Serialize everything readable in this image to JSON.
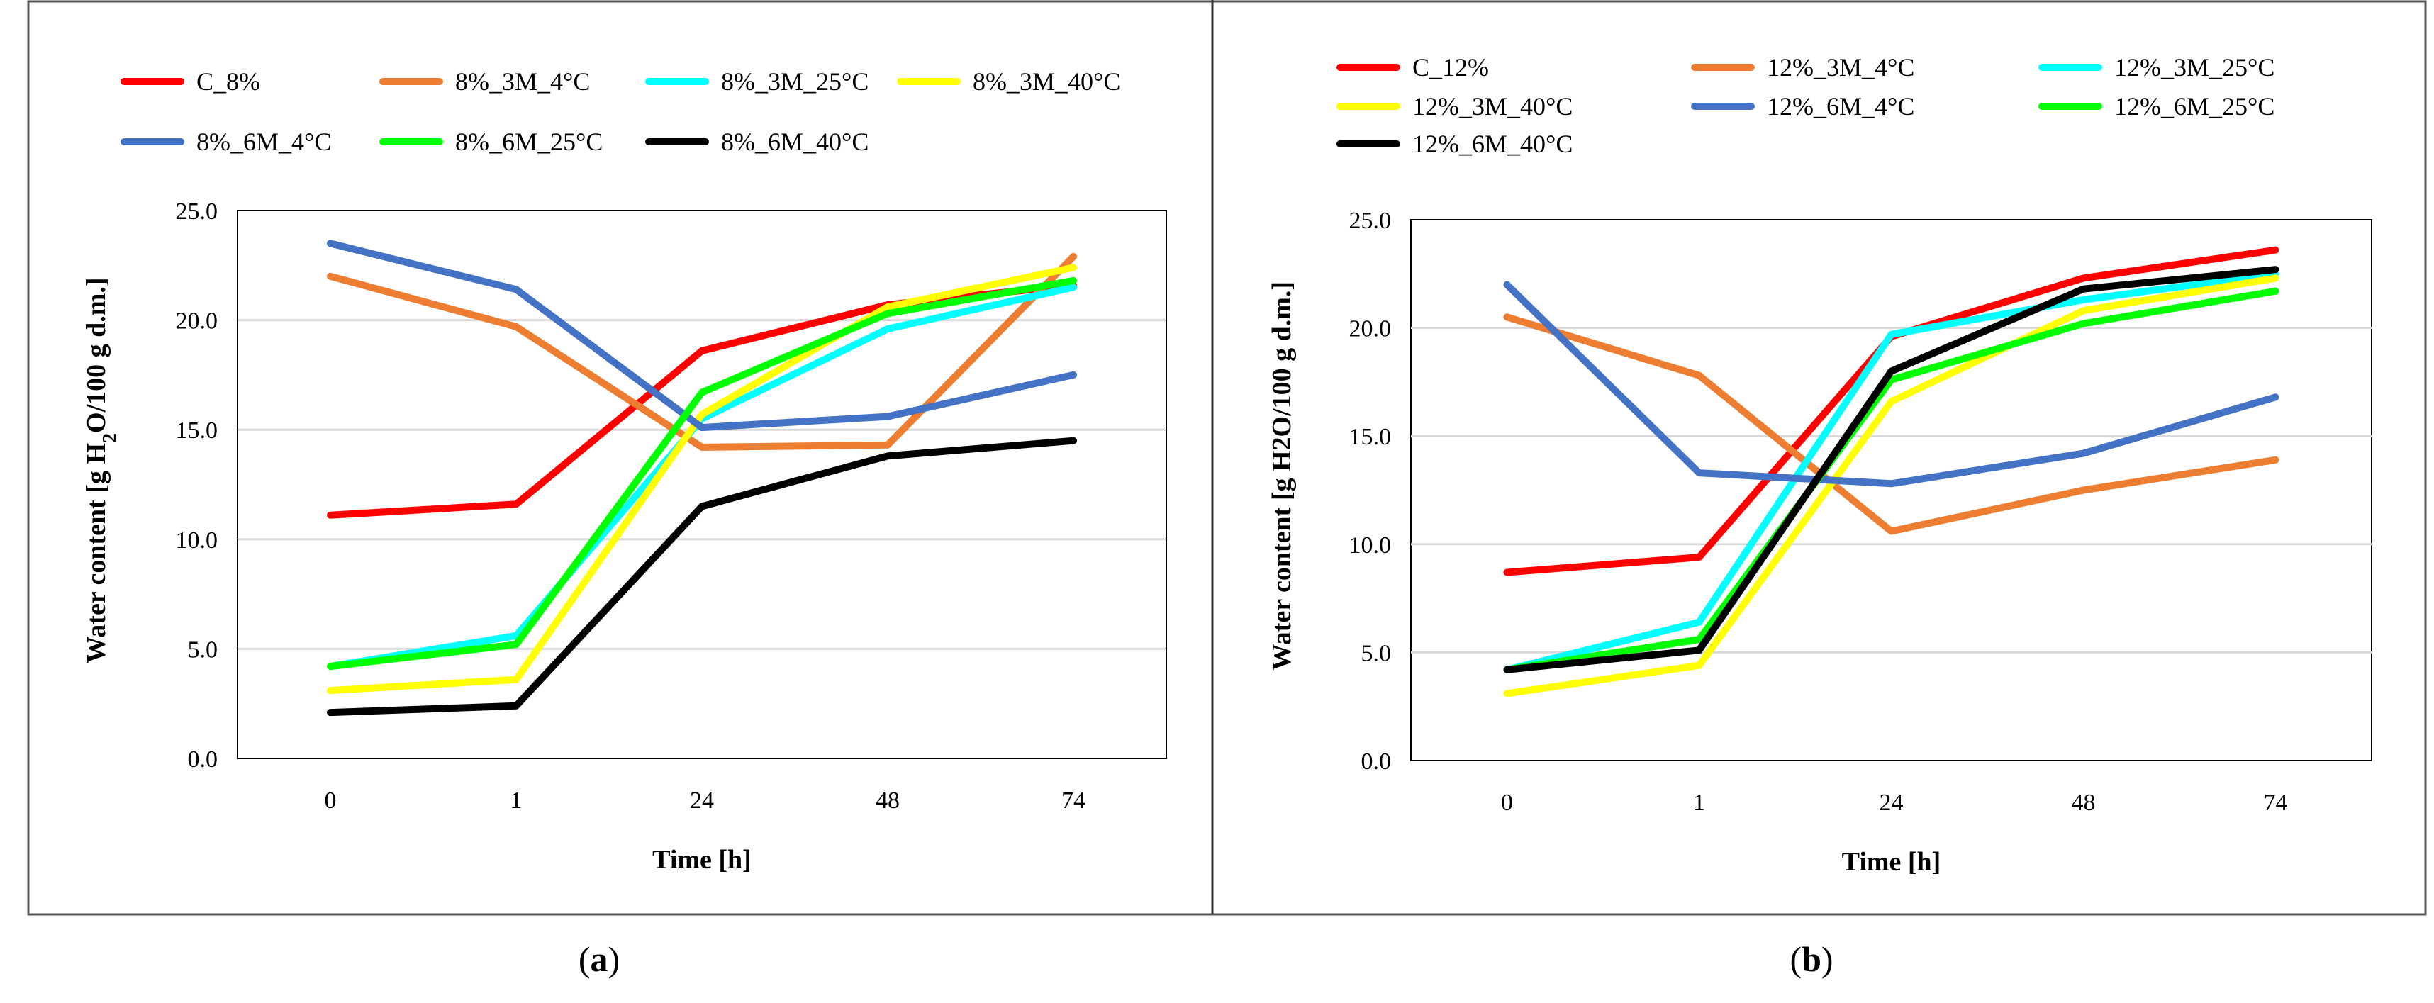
{
  "chart_data": [
    {
      "panel": "a",
      "caption": {
        "open": "(",
        "letter": "a",
        "close": ")"
      },
      "type": "line",
      "title": "",
      "xlabel": "Time [h]",
      "ylabel_parts": [
        "Water content [g H",
        "2",
        "O/100 g d.m.]"
      ],
      "categories": [
        "0",
        "1",
        "24",
        "48",
        "74"
      ],
      "ylim": [
        0,
        25
      ],
      "yticks": [
        "0.0",
        "5.0",
        "10.0",
        "15.0",
        "20.0",
        "25.0"
      ],
      "grid": true,
      "legend_position": "top",
      "series": [
        {
          "name": "C_8%",
          "color": "#ff0000",
          "values": [
            11.1,
            11.6,
            18.6,
            20.7,
            21.6
          ]
        },
        {
          "name": "8%_3M_4°C",
          "color": "#ed7d31",
          "values": [
            22.0,
            19.7,
            14.2,
            14.3,
            22.9
          ]
        },
        {
          "name": "8%_3M_25°C",
          "color": "#00ffff",
          "values": [
            4.2,
            5.6,
            15.5,
            19.6,
            21.5
          ]
        },
        {
          "name": "8%_3M_40°C",
          "color": "#ffff00",
          "values": [
            3.1,
            3.6,
            15.7,
            20.6,
            22.4
          ]
        },
        {
          "name": "8%_6M_4°C",
          "color": "#4472c4",
          "values": [
            23.5,
            21.4,
            15.1,
            15.6,
            17.5
          ]
        },
        {
          "name": "8%_6M_25°C",
          "color": "#00ff00",
          "values": [
            4.2,
            5.2,
            16.7,
            20.3,
            21.8
          ]
        },
        {
          "name": "8%_6M_40°C",
          "color": "#000000",
          "values": [
            2.1,
            2.4,
            11.5,
            13.8,
            14.5
          ]
        }
      ]
    },
    {
      "panel": "b",
      "caption": {
        "open": "(",
        "letter": "b",
        "close": ")"
      },
      "type": "line",
      "title": "",
      "xlabel": "Time [h]",
      "ylabel_parts": [
        "Water content [g H2O/100 g d.m.]"
      ],
      "categories": [
        "0",
        "1",
        "24",
        "48",
        "74"
      ],
      "ylim": [
        0,
        25
      ],
      "yticks": [
        "0.0",
        "5.0",
        "10.0",
        "15.0",
        "20.0",
        "25.0"
      ],
      "grid": true,
      "legend_position": "top",
      "series": [
        {
          "name": "C_12%",
          "color": "#ff0000",
          "values": [
            8.7,
            9.4,
            19.6,
            22.3,
            23.6
          ]
        },
        {
          "name": "12%_3M_4°C",
          "color": "#ed7d31",
          "values": [
            20.5,
            17.8,
            10.6,
            12.5,
            13.9
          ]
        },
        {
          "name": "12%_3M_25°C",
          "color": "#00ffff",
          "values": [
            4.2,
            6.4,
            19.7,
            21.3,
            22.5
          ]
        },
        {
          "name": "12%_3M_40°C",
          "color": "#ffff00",
          "values": [
            3.1,
            4.4,
            16.6,
            20.8,
            22.3
          ]
        },
        {
          "name": "12%_6M_4°C",
          "color": "#4472c4",
          "values": [
            22.0,
            13.3,
            12.8,
            14.2,
            16.8
          ]
        },
        {
          "name": "12%_6M_25°C",
          "color": "#00ff00",
          "values": [
            4.2,
            5.6,
            17.6,
            20.2,
            21.7
          ]
        },
        {
          "name": "12%_6M_40°C",
          "color": "#000000",
          "values": [
            4.2,
            5.1,
            18.0,
            21.8,
            22.7
          ]
        }
      ]
    }
  ]
}
